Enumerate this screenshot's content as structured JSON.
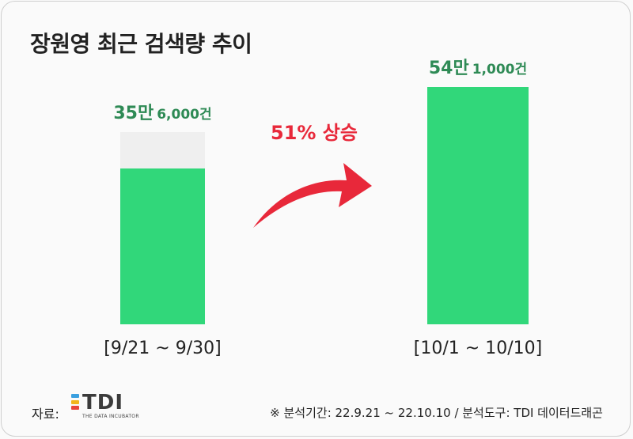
{
  "title": "장원영 최근 검색량 추이",
  "chart_data": {
    "type": "bar",
    "categories": [
      "[9/21 ~ 9/30]",
      "[10/1 ~ 10/10]"
    ],
    "values": [
      356000,
      541000
    ],
    "value_labels": [
      {
        "main": "35만",
        "rest": "6,000건"
      },
      {
        "main": "54만",
        "rest": "1,000건"
      }
    ],
    "ylim": [
      0,
      541000
    ],
    "colors": {
      "bar": "#31d77a",
      "track": "#efefef",
      "value_text": "#2e8a55"
    }
  },
  "growth_label": "51% 상승",
  "growth_color": "#e8283a",
  "footer": {
    "source_label": "자료:",
    "logo_text": "TDI",
    "logo_subtitle": "THE DATA INCUBATOR",
    "note": "※ 분석기간: 22.9.21 ~ 22.10.10 / 분석도구: TDI 데이터드래곤"
  }
}
